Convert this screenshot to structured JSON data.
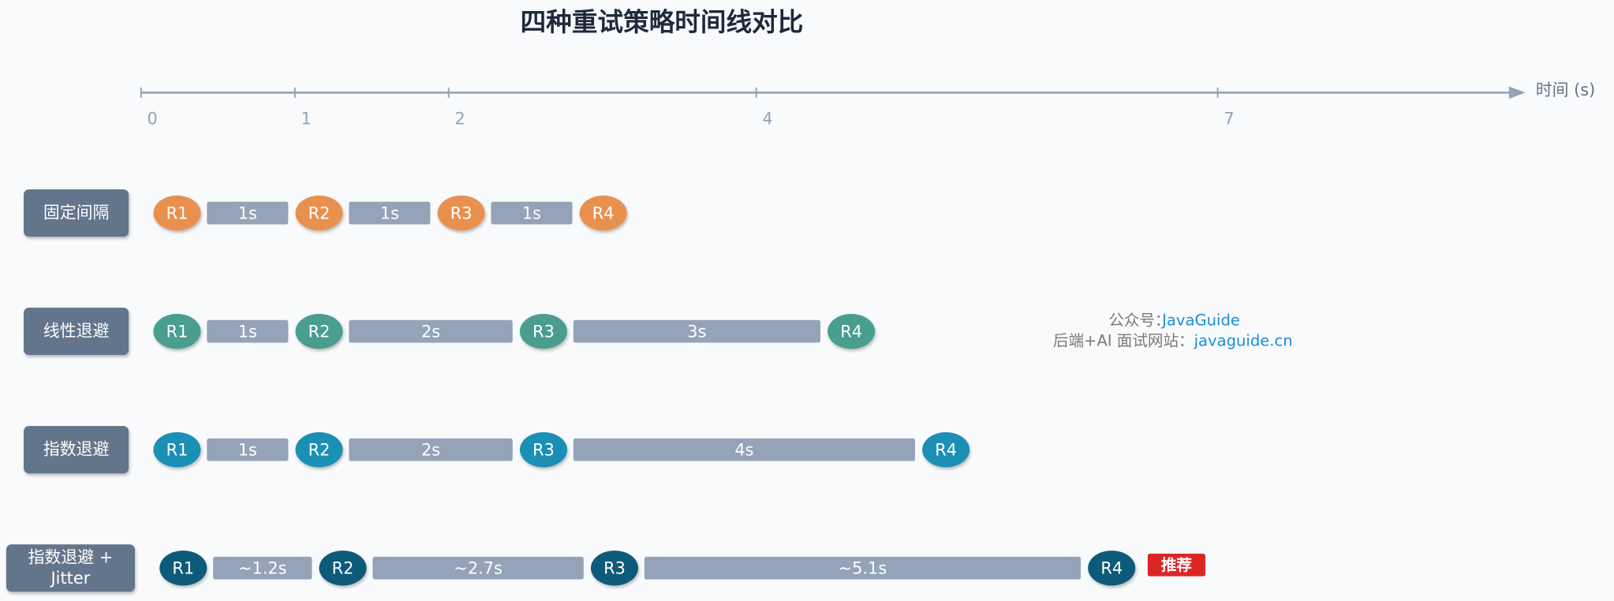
{
  "title": "四种重试策略时间线对比",
  "axis": {
    "label": "时间 (s)",
    "ticks": [
      0,
      1,
      2,
      4,
      7
    ]
  },
  "rows": [
    {
      "label": "固定间隔",
      "retries": [
        "R1",
        "R2",
        "R3",
        "R4"
      ],
      "gaps": [
        "1s",
        "1s",
        "1s"
      ]
    },
    {
      "label": "线性退避",
      "retries": [
        "R1",
        "R2",
        "R3",
        "R4"
      ],
      "gaps": [
        "1s",
        "2s",
        "3s"
      ]
    },
    {
      "label": "指数退避",
      "retries": [
        "R1",
        "R2",
        "R3",
        "R4"
      ],
      "gaps": [
        "1s",
        "2s",
        "4s"
      ]
    },
    {
      "label": "指数退避 + Jitter",
      "retries": [
        "R1",
        "R2",
        "R3",
        "R4"
      ],
      "gaps": [
        "~1.2s",
        "~2.7s",
        "~5.1s"
      ],
      "badge": "推荐"
    }
  ],
  "watermark": {
    "line1_prefix": "公众号：",
    "line1_link": "JavaGuide",
    "line2_prefix": "后端+AI 面试网站：",
    "line2_link": "javaguide.cn"
  }
}
